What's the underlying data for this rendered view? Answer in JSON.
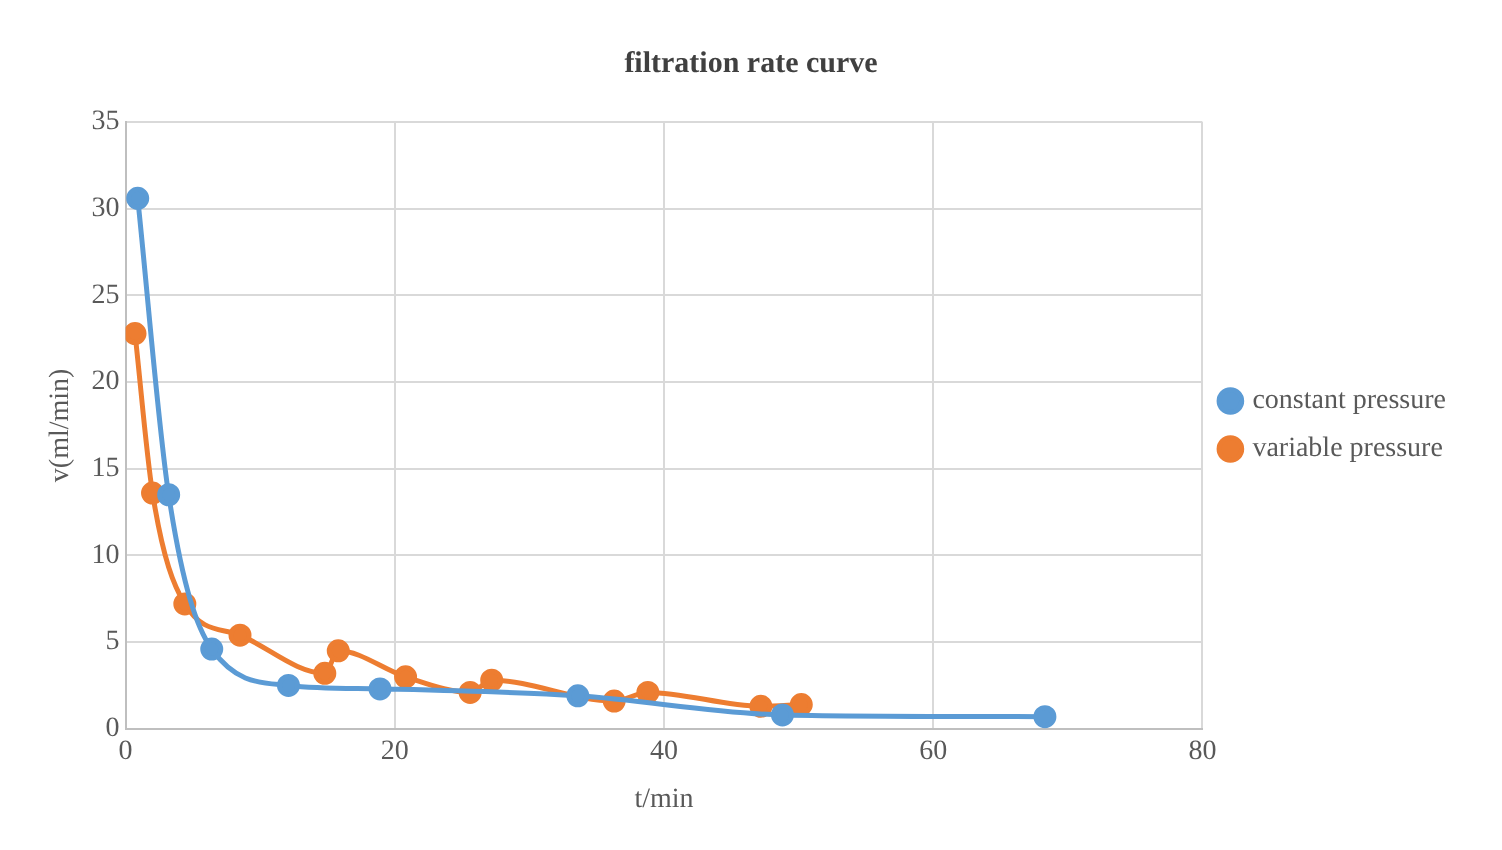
{
  "chart_data": {
    "type": "line",
    "title": "filtration rate curve",
    "xlabel": "t/min",
    "ylabel": "v(ml/min)",
    "xlim": [
      0,
      80
    ],
    "xticks": [
      0,
      20,
      40,
      60,
      80
    ],
    "ylim": [
      0,
      35
    ],
    "yticks": [
      0,
      5,
      10,
      15,
      20,
      25,
      30,
      35
    ],
    "grid": true,
    "legend": "right",
    "marker": "circle",
    "line_style": "solid",
    "series": [
      {
        "name": "constant pressure",
        "color": "#5b9bd5",
        "x": [
          0.9,
          3.2,
          6.4,
          12.1,
          18.9,
          33.6,
          48.8,
          68.3
        ],
        "values": [
          30.6,
          13.5,
          4.6,
          2.5,
          2.3,
          1.9,
          0.8,
          0.7
        ]
      },
      {
        "name": "variable pressure",
        "color": "#ed7d31",
        "x": [
          0.7,
          2.0,
          4.4,
          8.5,
          14.8,
          15.8,
          20.8,
          25.6,
          27.2,
          36.3,
          38.8,
          47.2,
          50.2
        ],
        "values": [
          22.8,
          13.6,
          7.2,
          5.4,
          3.2,
          4.5,
          3.0,
          2.1,
          2.8,
          1.6,
          2.1,
          1.3,
          1.4
        ]
      }
    ]
  }
}
